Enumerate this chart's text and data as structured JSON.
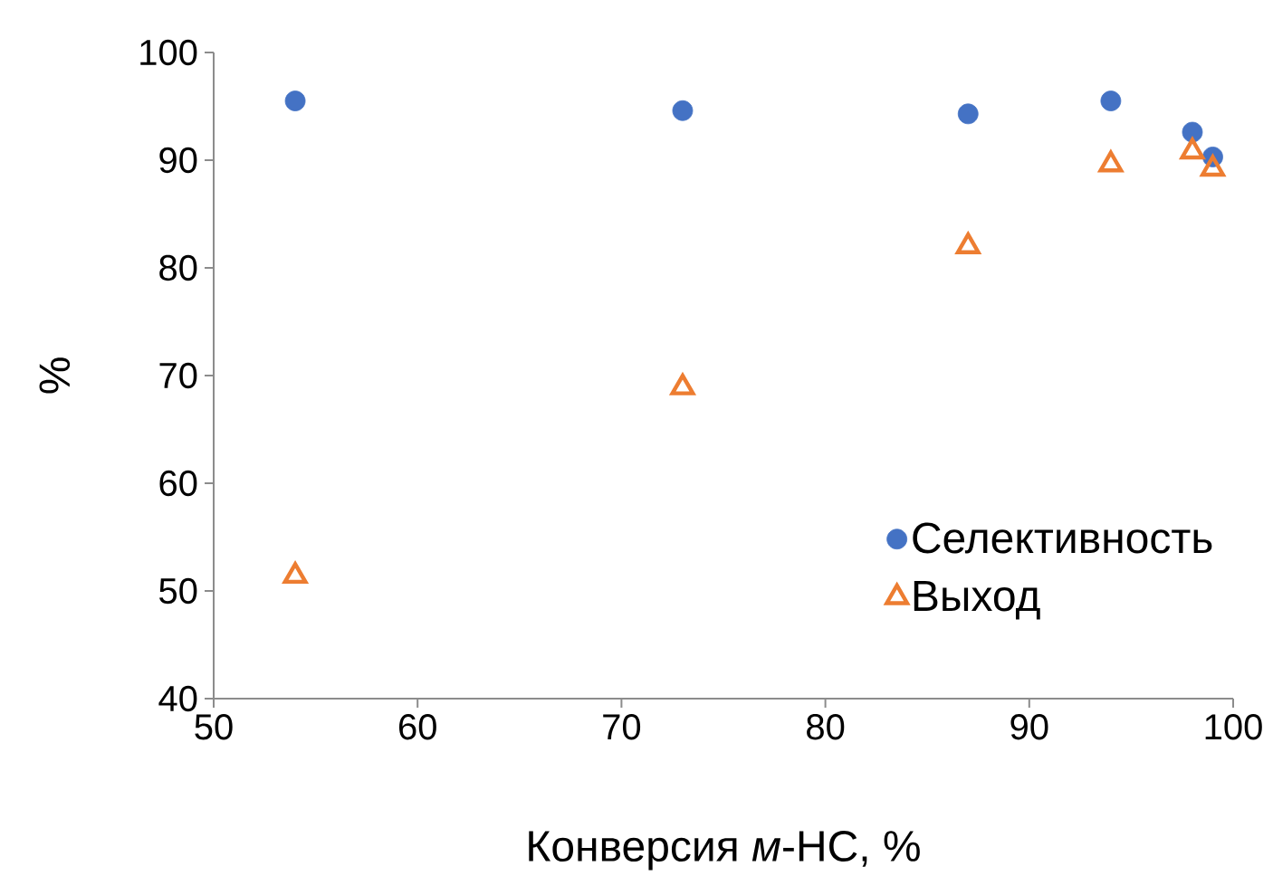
{
  "chart_data": {
    "type": "scatter",
    "xlabel": "Конверсия *м*-НС, %",
    "ylabel": "%",
    "xlim": [
      50,
      100
    ],
    "ylim": [
      40,
      100
    ],
    "xticks": [
      50,
      60,
      70,
      80,
      90,
      100
    ],
    "yticks": [
      40,
      50,
      60,
      70,
      80,
      90,
      100
    ],
    "grid": false,
    "legend": "bottom right",
    "series": [
      {
        "name": "Селективность",
        "color": "#4472c4",
        "marker": "circle",
        "x": [
          54,
          73,
          87,
          94,
          98,
          99
        ],
        "values": [
          95.5,
          94.6,
          94.3,
          95.5,
          92.6,
          90.3
        ]
      },
      {
        "name": "Выход",
        "color": "#ed7d31",
        "marker": "triangle",
        "x": [
          54,
          73,
          87,
          94,
          98,
          99
        ],
        "values": [
          51.4,
          68.9,
          82.0,
          89.6,
          90.8,
          89.2
        ]
      }
    ]
  }
}
